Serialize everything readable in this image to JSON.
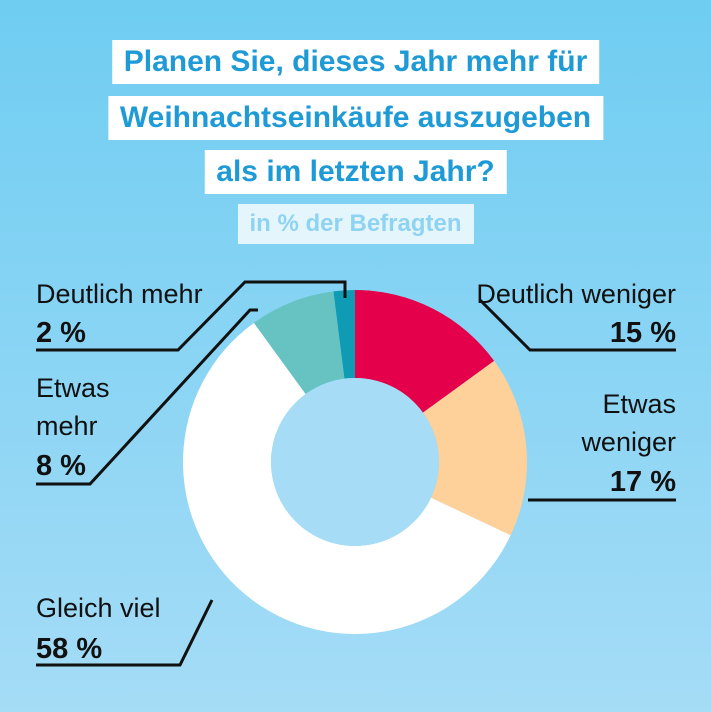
{
  "title_lines": [
    "Planen Sie, dieses Jahr mehr für",
    "Weihnachtseinkäufe auszugeben",
    "als im letzten Jahr?"
  ],
  "subtitle": "in % der Befragten",
  "colors": {
    "background_top": "#6fcdf2",
    "background_bottom": "#a5dcf6",
    "title_text": "#1e9ad6",
    "title_box": "#ffffff"
  },
  "chart_data": {
    "type": "pie",
    "style": "donut",
    "title": "Planen Sie, dieses Jahr mehr für Weihnachtseinkäufe auszugeben als im letzten Jahr?",
    "subtitle": "in % der Befragten",
    "unit": "%",
    "slices": [
      {
        "label": "Deutlich weniger",
        "value": 15,
        "value_label": "15 %",
        "color": "#e4004b"
      },
      {
        "label": "Etwas weniger",
        "value": 17,
        "value_label": "17 %",
        "color": "#fdd199"
      },
      {
        "label": "Gleich viel",
        "value": 58,
        "value_label": "58 %",
        "color": "#ffffff"
      },
      {
        "label": "Etwas mehr",
        "value": 8,
        "value_label": "8 %",
        "color": "#66c3c2"
      },
      {
        "label": "Deutlich mehr",
        "value": 2,
        "value_label": "2 %",
        "color": "#0f9bb4"
      }
    ]
  }
}
